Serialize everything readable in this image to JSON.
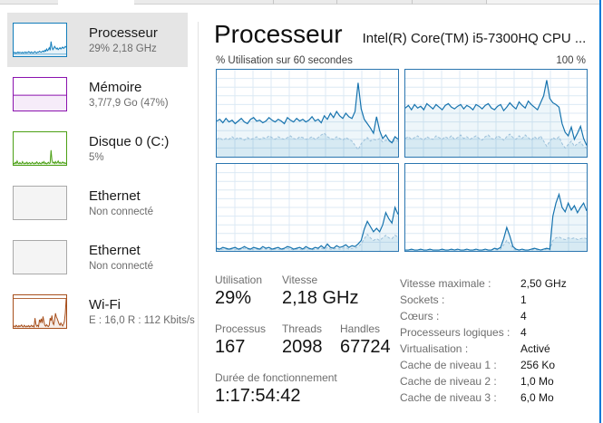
{
  "app": "Gestionnaire des tâches - Performance",
  "colors": {
    "cpu": "#117dbb",
    "memory": "#8b12ae",
    "disk": "#4ba015",
    "ethernet": "#a9a9a9",
    "wifi": "#a74f1c",
    "accent_window_border": "#0078d7",
    "selected_item_bg": "#e5e5e5",
    "chart_border": "#2b76b0",
    "chart_grid": "#dce9f4"
  },
  "sidebar": {
    "items": [
      {
        "id": "cpu",
        "title": "Processeur",
        "subtitle": "29% 2,18 GHz",
        "selected": true,
        "color": "#117dbb",
        "thumb": "cpu"
      },
      {
        "id": "memory",
        "title": "Mémoire",
        "subtitle": "3,7/7,9 Go (47%)",
        "selected": false,
        "color": "#8b12ae",
        "thumb": "memory"
      },
      {
        "id": "disk0",
        "title": "Disque 0 (C:)",
        "subtitle": "5%",
        "selected": false,
        "color": "#4ba015",
        "thumb": "disk"
      },
      {
        "id": "eth1",
        "title": "Ethernet",
        "subtitle": "Non connecté",
        "selected": false,
        "color": "#a9a9a9",
        "thumb": "eth"
      },
      {
        "id": "eth2",
        "title": "Ethernet",
        "subtitle": "Non connecté",
        "selected": false,
        "color": "#a9a9a9",
        "thumb": "eth"
      },
      {
        "id": "wifi",
        "title": "Wi-Fi",
        "subtitle": "E : 16,0 R : 112 Kbits/s",
        "selected": false,
        "color": "#a74f1c",
        "thumb": "wifi"
      }
    ]
  },
  "main": {
    "title": "Processeur",
    "subtitle": "Intel(R) Core(TM) i5-7300HQ CPU ...",
    "chart_header_left": "% Utilisation sur 60 secondes",
    "chart_header_right": "100 %",
    "stats_left": {
      "utilisation_label": "Utilisation",
      "utilisation_value": "29%",
      "vitesse_label": "Vitesse",
      "vitesse_value": "2,18 GHz",
      "processus_label": "Processus",
      "processus_value": "167",
      "threads_label": "Threads",
      "threads_value": "2098",
      "handles_label": "Handles",
      "handles_value": "67724",
      "uptime_label": "Durée de fonctionnement",
      "uptime_value": "1:17:54:42"
    },
    "stats_right": [
      {
        "label": "Vitesse maximale :",
        "value": "2,50 GHz"
      },
      {
        "label": "Sockets :",
        "value": "1"
      },
      {
        "label": "Cœurs :",
        "value": "4"
      },
      {
        "label": "Processeurs logiques :",
        "value": "4"
      },
      {
        "label": "Virtualisation :",
        "value": "Activé"
      },
      {
        "label": "Cache de niveau 1 :",
        "value": "256 Ko"
      },
      {
        "label": "Cache de niveau 2 :",
        "value": "1,0 Mo"
      },
      {
        "label": "Cache de niveau 3 :",
        "value": "6,0 Mo"
      }
    ]
  },
  "chart_data": {
    "type": "area",
    "title": "% Utilisation sur 60 secondes",
    "xlabel": "60 secondes",
    "ylabel": "% Utilisation",
    "ylim": [
      0,
      100
    ],
    "grid": true,
    "charts": [
      {
        "name": "logical-processor-1",
        "series": [
          {
            "name": "utilisation",
            "values": [
              41,
              43,
              39,
              44,
              40,
              42,
              38,
              41,
              44,
              40,
              38,
              43,
              45,
              41,
              42,
              39,
              41,
              45,
              42,
              40,
              43,
              41,
              38,
              45,
              42,
              40,
              44,
              41,
              43,
              40,
              42,
              46,
              41,
              43,
              39,
              47,
              43,
              50,
              45,
              52,
              47,
              44,
              50,
              46,
              44,
              52,
              85,
              55,
              43,
              38,
              33,
              27,
              46,
              30,
              21,
              25,
              19,
              16,
              23,
              20
            ]
          },
          {
            "name": "noyau",
            "values": [
              20,
              22,
              19,
              21,
              20,
              23,
              20,
              22,
              21,
              19,
              22,
              20,
              21,
              23,
              20,
              22,
              21,
              24,
              22,
              20,
              23,
              21,
              20,
              22,
              24,
              21,
              20,
              23,
              22,
              20,
              21,
              23,
              20,
              22,
              25,
              27,
              23,
              21,
              20,
              23,
              21,
              19,
              22,
              20,
              18,
              13,
              8,
              15,
              19,
              22,
              18,
              20,
              19,
              21,
              17,
              19,
              18,
              16,
              19,
              18
            ]
          }
        ]
      },
      {
        "name": "logical-processor-2",
        "series": [
          {
            "name": "utilisation",
            "values": [
              56,
              59,
              54,
              60,
              56,
              58,
              54,
              61,
              58,
              55,
              60,
              57,
              54,
              59,
              61,
              57,
              55,
              58,
              60,
              55,
              59,
              57,
              54,
              60,
              58,
              55,
              59,
              61,
              56,
              54,
              58,
              60,
              53,
              57,
              62,
              58,
              55,
              63,
              59,
              56,
              64,
              60,
              57,
              54,
              62,
              70,
              88,
              67,
              62,
              60,
              57,
              38,
              28,
              24,
              34,
              20,
              27,
              35,
              21,
              13
            ]
          },
          {
            "name": "noyau",
            "values": [
              21,
              23,
              20,
              22,
              24,
              21,
              19,
              23,
              21,
              20,
              24,
              22,
              20,
              23,
              21,
              24,
              20,
              22,
              25,
              21,
              23,
              20,
              22,
              24,
              21,
              19,
              23,
              25,
              21,
              20,
              24,
              22,
              19,
              23,
              26,
              22,
              20,
              24,
              21,
              25,
              22,
              19,
              23,
              20,
              24,
              18,
              12,
              18,
              22,
              20,
              23,
              15,
              10,
              14,
              18,
              12,
              15,
              17,
              12,
              10
            ]
          }
        ]
      },
      {
        "name": "logical-processor-3",
        "series": [
          {
            "name": "utilisation",
            "values": [
              3,
              2,
              4,
              3,
              2,
              3,
              4,
              2,
              3,
              5,
              3,
              2,
              4,
              3,
              2,
              5,
              3,
              4,
              2,
              3,
              4,
              2,
              3,
              5,
              4,
              2,
              3,
              4,
              2,
              5,
              3,
              2,
              4,
              3,
              6,
              3,
              8,
              4,
              3,
              6,
              4,
              5,
              7,
              4,
              6,
              5,
              8,
              12,
              25,
              34,
              28,
              22,
              26,
              22,
              30,
              44,
              37,
              32,
              50,
              42
            ]
          },
          {
            "name": "noyau",
            "values": [
              2,
              1,
              2,
              2,
              1,
              2,
              2,
              1,
              2,
              3,
              2,
              1,
              2,
              2,
              1,
              3,
              2,
              2,
              1,
              2,
              2,
              1,
              2,
              3,
              2,
              1,
              2,
              2,
              1,
              3,
              2,
              1,
              2,
              2,
              3,
              2,
              4,
              2,
              2,
              3,
              2,
              3,
              4,
              2,
              3,
              3,
              5,
              8,
              14,
              19,
              15,
              12,
              14,
              12,
              15,
              18,
              15,
              14,
              18,
              16
            ]
          }
        ]
      },
      {
        "name": "logical-processor-4",
        "series": [
          {
            "name": "utilisation",
            "values": [
              1,
              1,
              2,
              1,
              1,
              2,
              1,
              1,
              2,
              1,
              1,
              1,
              2,
              1,
              1,
              2,
              1,
              2,
              1,
              1,
              2,
              1,
              1,
              2,
              1,
              1,
              2,
              1,
              1,
              3,
              2,
              4,
              14,
              27,
              17,
              5,
              2,
              1,
              2,
              1,
              1,
              2,
              3,
              2,
              1,
              2,
              3,
              2,
              40,
              55,
              65,
              50,
              45,
              55,
              47,
              52,
              44,
              50,
              55,
              46
            ]
          },
          {
            "name": "noyau",
            "values": [
              1,
              1,
              1,
              1,
              1,
              1,
              1,
              1,
              1,
              1,
              1,
              1,
              1,
              1,
              1,
              1,
              1,
              1,
              1,
              1,
              1,
              1,
              1,
              1,
              1,
              1,
              1,
              1,
              1,
              2,
              1,
              2,
              7,
              12,
              8,
              3,
              1,
              1,
              1,
              1,
              1,
              1,
              2,
              1,
              1,
              1,
              2,
              1,
              12,
              15,
              16,
              14,
              13,
              15,
              14,
              15,
              13,
              14,
              15,
              14
            ]
          }
        ]
      }
    ],
    "thumbnails": {
      "cpu": [
        10,
        12,
        9,
        11,
        10,
        13,
        10,
        12,
        11,
        10,
        12,
        10,
        11,
        13,
        10,
        12,
        11,
        14,
        12,
        10,
        13,
        11,
        10,
        12,
        14,
        11,
        10,
        13,
        12,
        15,
        13,
        12,
        14,
        16,
        13,
        18,
        15,
        22,
        17,
        20,
        26,
        18,
        45,
        28,
        20,
        24,
        30,
        26,
        22,
        25,
        20,
        23,
        26,
        22,
        25,
        28,
        24,
        26,
        30,
        27
      ],
      "disk": [
        5,
        3,
        8,
        4,
        12,
        5,
        3,
        7,
        4,
        3,
        10,
        5,
        3,
        6,
        4,
        8,
        3,
        5,
        7,
        3,
        4,
        8,
        5,
        3,
        6,
        4,
        9,
        5,
        3,
        7,
        4,
        3,
        8,
        5,
        10,
        4,
        6,
        3,
        5,
        8,
        4,
        6,
        45,
        15,
        6,
        8,
        4,
        10,
        5,
        7,
        12,
        5,
        8,
        4,
        6,
        9,
        5,
        7,
        4,
        6
      ],
      "wifi": [
        4,
        6,
        3,
        8,
        5,
        3,
        7,
        4,
        6,
        9,
        4,
        3,
        8,
        5,
        3,
        6,
        4,
        7,
        3,
        5,
        8,
        4,
        6,
        3,
        30,
        12,
        5,
        8,
        4,
        25,
        18,
        28,
        15,
        35,
        20,
        8,
        5,
        10,
        6,
        4,
        8,
        30,
        22,
        38,
        15,
        10,
        25,
        45,
        33,
        28,
        20,
        12,
        8,
        15,
        10,
        6,
        12,
        20,
        45,
        90
      ],
      "memory_used_pct": 47
    }
  }
}
